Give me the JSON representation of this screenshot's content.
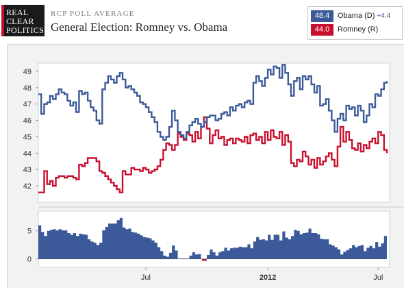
{
  "header": {
    "logo_lines": [
      "REAL",
      "CLEAR",
      "POLITICS"
    ],
    "kicker": "RCP POLL AVERAGE",
    "title": "General Election: Romney vs. Obama"
  },
  "legend": [
    {
      "value": "48.4",
      "name": "Obama (D)",
      "spread": "+4.4",
      "color": "#3c5a9a"
    },
    {
      "value": "44.0",
      "name": "Romney (R)",
      "spread": "",
      "color": "#c8102e"
    }
  ],
  "chart_data": [
    {
      "type": "line",
      "x_tick_labels": [
        "Jul",
        "2012",
        "Jul"
      ],
      "ylim": [
        41,
        49.5
      ],
      "y_ticks": [
        42,
        43,
        44,
        45,
        46,
        47,
        48,
        49
      ],
      "x": [
        0,
        1,
        2,
        3,
        4,
        5,
        6,
        7,
        8,
        9,
        10,
        11,
        12,
        13,
        14,
        15,
        16,
        17,
        18,
        19,
        20,
        21,
        22,
        23,
        24,
        25,
        26,
        27,
        28,
        29,
        30,
        31,
        32,
        33,
        34,
        35,
        36,
        37,
        38,
        39,
        40,
        41,
        42,
        43,
        44,
        45,
        46,
        47,
        48,
        49,
        50,
        51,
        52,
        53,
        54,
        55,
        56,
        57,
        58,
        59,
        60,
        61,
        62,
        63,
        64,
        65,
        66,
        67,
        68,
        69,
        70,
        71,
        72,
        73,
        74,
        75,
        76,
        77,
        78,
        79,
        80,
        81,
        82,
        83,
        84,
        85,
        86,
        87,
        88,
        89,
        90,
        91,
        92,
        93,
        94,
        95,
        96,
        97,
        98,
        99,
        100,
        101,
        102,
        103,
        104,
        105,
        106,
        107,
        108,
        109,
        110,
        111,
        112,
        113,
        114,
        115,
        116,
        117,
        118,
        119,
        120
      ],
      "series": [
        {
          "name": "Obama (D)",
          "color": "#3c5a9a",
          "values": [
            47.6,
            46.4,
            47.0,
            47.1,
            47.5,
            47.3,
            47.6,
            47.9,
            47.7,
            47.6,
            47.2,
            46.9,
            47.1,
            46.5,
            47.8,
            47.6,
            47.7,
            47.2,
            46.8,
            46.6,
            46.0,
            45.8,
            47.9,
            48.3,
            48.7,
            48.5,
            48.3,
            48.7,
            48.9,
            48.5,
            48.0,
            48.1,
            47.9,
            47.7,
            47.5,
            47.1,
            47.0,
            46.8,
            46.5,
            46.2,
            45.9,
            45.3,
            45.0,
            44.8,
            45.0,
            45.6,
            46.6,
            46.0,
            45.3,
            45.1,
            44.9,
            45.3,
            45.7,
            45.9,
            46.1,
            45.8,
            45.6,
            45.9,
            46.2,
            46.3,
            46.3,
            46.0,
            46.1,
            46.4,
            46.5,
            46.3,
            46.8,
            46.6,
            46.9,
            47.0,
            46.8,
            47.1,
            47.2,
            47.0,
            48.3,
            48.7,
            48.4,
            48.1,
            48.6,
            49.1,
            48.8,
            49.3,
            49.2,
            48.6,
            49.4,
            48.9,
            48.2,
            47.5,
            48.4,
            48.6,
            47.9,
            48.7,
            48.5,
            48.7,
            48.2,
            47.7,
            48.1,
            46.9,
            47.0,
            47.3,
            46.6,
            46.0,
            45.3,
            46.1,
            46.4,
            46.0,
            46.9,
            46.7,
            46.8,
            46.3,
            46.9,
            46.6,
            45.9,
            46.3,
            47.0,
            46.8,
            47.6,
            47.5,
            47.9,
            48.3,
            48.4
          ]
        },
        {
          "name": "Romney (R)",
          "color": "#c8102e",
          "values": [
            41.6,
            41.6,
            42.9,
            42.1,
            42.3,
            42.0,
            42.5,
            42.6,
            42.6,
            42.5,
            42.6,
            42.6,
            42.5,
            42.4,
            43.3,
            43.2,
            43.4,
            43.7,
            43.7,
            43.7,
            43.5,
            42.9,
            42.8,
            42.6,
            42.4,
            42.2,
            42.0,
            41.8,
            41.6,
            42.9,
            42.7,
            42.7,
            43.1,
            43.0,
            43.0,
            42.9,
            43.1,
            43.0,
            42.8,
            42.9,
            43.0,
            43.2,
            43.6,
            44.2,
            44.6,
            44.5,
            44.2,
            44.5,
            45.2,
            45.0,
            44.8,
            45.2,
            45.1,
            44.7,
            45.3,
            44.9,
            45.6,
            46.2,
            45.5,
            44.6,
            45.1,
            45.4,
            44.9,
            45.0,
            44.5,
            44.8,
            44.9,
            44.6,
            44.9,
            44.8,
            44.7,
            45.0,
            44.6,
            45.1,
            45.2,
            44.8,
            45.0,
            44.6,
            45.3,
            44.8,
            45.4,
            45.0,
            44.9,
            45.3,
            44.5,
            45.1,
            44.7,
            43.4,
            43.2,
            43.6,
            43.5,
            44.1,
            43.8,
            43.3,
            43.6,
            43.1,
            43.7,
            43.3,
            43.5,
            43.8,
            44.0,
            43.6,
            43.2,
            44.4,
            45.6,
            44.7,
            45.3,
            44.8,
            44.3,
            44.2,
            44.6,
            44.1,
            44.5,
            44.3,
            44.7,
            44.9,
            44.6,
            45.3,
            45.1,
            44.2,
            44.0
          ]
        }
      ]
    },
    {
      "type": "area",
      "name": "Spread",
      "ylim": [
        -1.5,
        8.5
      ],
      "y_ticks": [
        0,
        5
      ],
      "color": "#3c5a9a",
      "values": [
        6.0,
        4.8,
        4.1,
        5.0,
        5.2,
        5.3,
        5.1,
        5.3,
        5.1,
        5.1,
        4.6,
        4.3,
        4.6,
        4.1,
        4.5,
        4.4,
        4.3,
        3.5,
        3.1,
        2.9,
        2.5,
        2.9,
        5.1,
        5.7,
        6.3,
        6.3,
        6.3,
        6.9,
        7.3,
        5.6,
        5.3,
        5.4,
        4.8,
        4.7,
        4.5,
        4.2,
        3.9,
        3.8,
        3.7,
        3.3,
        2.9,
        2.1,
        1.4,
        0.6,
        0.4,
        1.1,
        2.4,
        1.5,
        0.1,
        0.1,
        0.1,
        0.1,
        0.6,
        1.2,
        0.8,
        0.9,
        0.0,
        -0.3,
        0.7,
        1.7,
        1.2,
        0.6,
        1.2,
        1.4,
        2.0,
        1.5,
        1.9,
        2.0,
        2.0,
        2.2,
        2.1,
        2.1,
        2.6,
        1.9,
        3.1,
        3.9,
        3.4,
        3.5,
        3.3,
        4.3,
        3.4,
        4.3,
        4.3,
        3.3,
        4.9,
        3.8,
        3.5,
        4.1,
        5.2,
        5.0,
        4.4,
        4.6,
        4.7,
        5.4,
        4.6,
        4.6,
        4.4,
        3.6,
        3.5,
        3.5,
        2.6,
        2.4,
        2.1,
        1.7,
        0.8,
        1.3,
        1.6,
        1.9,
        2.5,
        2.1,
        2.3,
        2.5,
        1.4,
        2.0,
        2.3,
        1.9,
        3.0,
        2.2,
        2.8,
        4.1,
        4.4
      ]
    }
  ]
}
